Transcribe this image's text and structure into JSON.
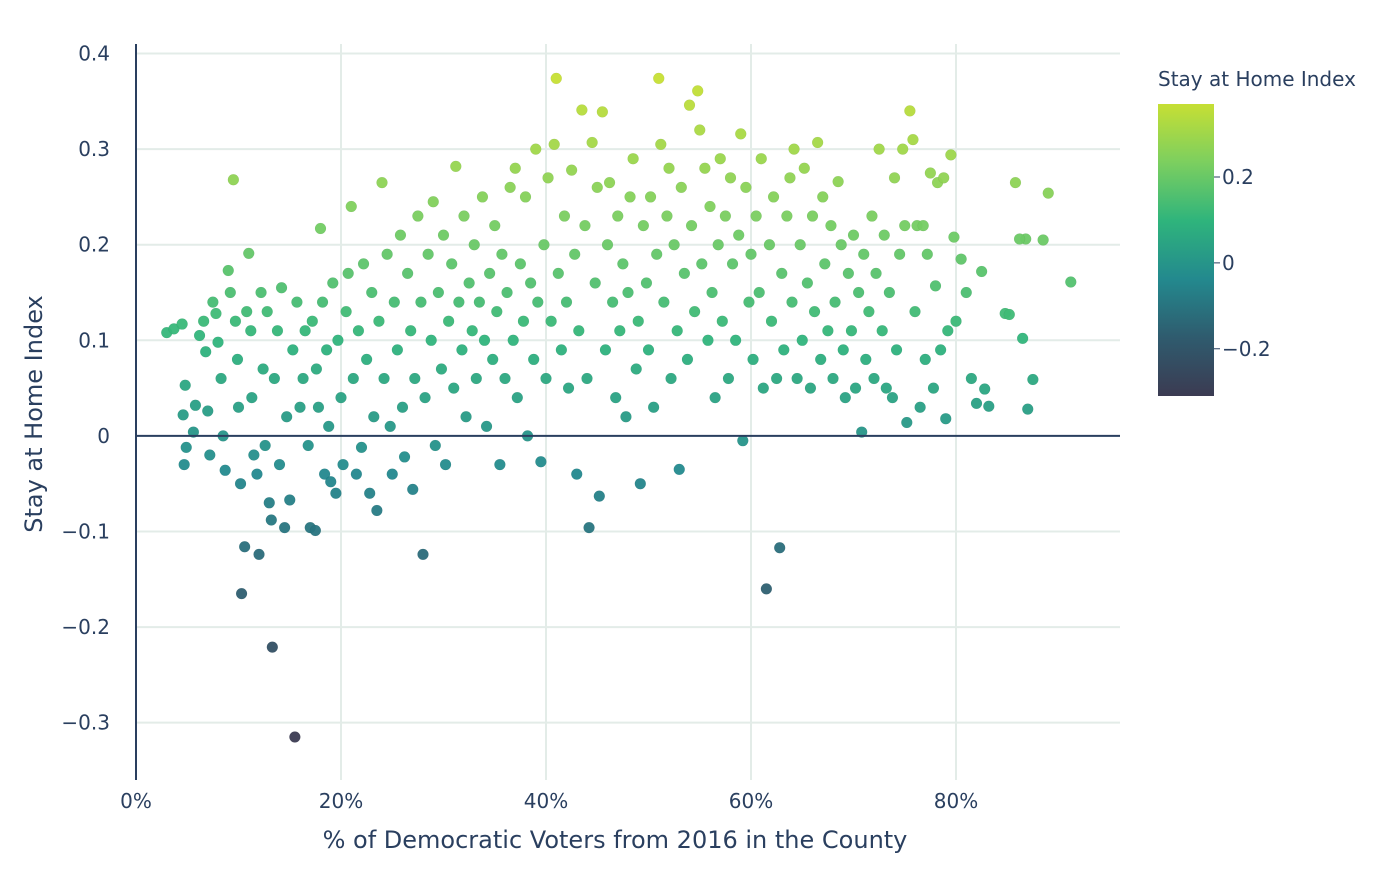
{
  "chart_data": {
    "type": "scatter",
    "xlabel": "% of Democratic Voters from 2016 in the County",
    "ylabel": "Stay at Home Index",
    "xlim": [
      0,
      0.96
    ],
    "ylim": [
      -0.36,
      0.41
    ],
    "x_ticks": [
      {
        "value": 0.0,
        "label": "0%"
      },
      {
        "value": 0.2,
        "label": "20%"
      },
      {
        "value": 0.4,
        "label": "40%"
      },
      {
        "value": 0.6,
        "label": "60%"
      },
      {
        "value": 0.8,
        "label": "80%"
      }
    ],
    "y_ticks": [
      {
        "value": 0.4,
        "label": "0.4"
      },
      {
        "value": 0.3,
        "label": "0.3"
      },
      {
        "value": 0.2,
        "label": "0.2"
      },
      {
        "value": 0.1,
        "label": "0.1"
      },
      {
        "value": 0.0,
        "label": "0"
      },
      {
        "value": -0.1,
        "label": "−0.1"
      },
      {
        "value": -0.2,
        "label": "−0.2"
      },
      {
        "value": -0.3,
        "label": "−0.3"
      }
    ],
    "grid": true,
    "zero_line": true,
    "colorscale": "viridis",
    "colorbar": {
      "title": "Stay at Home Index",
      "range": [
        -0.31,
        0.37
      ],
      "ticks": [
        {
          "value": 0.2,
          "label": "0.2"
        },
        {
          "value": 0.0,
          "label": "0"
        },
        {
          "value": -0.2,
          "label": "−0.2"
        }
      ],
      "colors": [
        "#3b3b52",
        "#2f5b6e",
        "#23898e",
        "#2fb47c",
        "#7ccf5f",
        "#c6df34"
      ]
    },
    "points": [
      [
        0.03,
        0.108
      ],
      [
        0.037,
        0.112
      ],
      [
        0.045,
        0.117
      ],
      [
        0.048,
        0.053
      ],
      [
        0.046,
        0.022
      ],
      [
        0.049,
        -0.012
      ],
      [
        0.047,
        -0.03
      ],
      [
        0.056,
        0.004
      ],
      [
        0.058,
        0.032
      ],
      [
        0.062,
        0.105
      ],
      [
        0.066,
        0.12
      ],
      [
        0.068,
        0.088
      ],
      [
        0.07,
        0.026
      ],
      [
        0.072,
        -0.02
      ],
      [
        0.075,
        0.14
      ],
      [
        0.078,
        0.128
      ],
      [
        0.08,
        0.098
      ],
      [
        0.083,
        0.06
      ],
      [
        0.085,
        0.0
      ],
      [
        0.087,
        -0.036
      ],
      [
        0.09,
        0.173
      ],
      [
        0.092,
        0.15
      ],
      [
        0.095,
        0.268
      ],
      [
        0.097,
        0.12
      ],
      [
        0.099,
        0.08
      ],
      [
        0.1,
        0.03
      ],
      [
        0.102,
        -0.05
      ],
      [
        0.103,
        -0.165
      ],
      [
        0.106,
        -0.116
      ],
      [
        0.108,
        0.13
      ],
      [
        0.11,
        0.191
      ],
      [
        0.112,
        0.11
      ],
      [
        0.113,
        0.04
      ],
      [
        0.115,
        -0.02
      ],
      [
        0.118,
        -0.04
      ],
      [
        0.12,
        -0.124
      ],
      [
        0.122,
        0.15
      ],
      [
        0.124,
        0.07
      ],
      [
        0.126,
        -0.01
      ],
      [
        0.128,
        0.13
      ],
      [
        0.13,
        -0.07
      ],
      [
        0.132,
        -0.088
      ],
      [
        0.133,
        -0.221
      ],
      [
        0.135,
        0.06
      ],
      [
        0.138,
        0.11
      ],
      [
        0.14,
        -0.03
      ],
      [
        0.142,
        0.155
      ],
      [
        0.145,
        -0.096
      ],
      [
        0.147,
        0.02
      ],
      [
        0.15,
        -0.067
      ],
      [
        0.153,
        0.09
      ],
      [
        0.155,
        -0.315
      ],
      [
        0.157,
        0.14
      ],
      [
        0.16,
        0.03
      ],
      [
        0.163,
        0.06
      ],
      [
        0.165,
        0.11
      ],
      [
        0.168,
        -0.01
      ],
      [
        0.17,
        -0.096
      ],
      [
        0.172,
        0.12
      ],
      [
        0.175,
        -0.099
      ],
      [
        0.176,
        0.07
      ],
      [
        0.178,
        0.03
      ],
      [
        0.18,
        0.217
      ],
      [
        0.182,
        0.14
      ],
      [
        0.184,
        -0.04
      ],
      [
        0.186,
        0.09
      ],
      [
        0.188,
        0.01
      ],
      [
        0.19,
        -0.048
      ],
      [
        0.192,
        0.16
      ],
      [
        0.195,
        -0.06
      ],
      [
        0.197,
        0.1
      ],
      [
        0.2,
        0.04
      ],
      [
        0.202,
        -0.03
      ],
      [
        0.205,
        0.13
      ],
      [
        0.207,
        0.17
      ],
      [
        0.21,
        0.24
      ],
      [
        0.212,
        0.06
      ],
      [
        0.215,
        -0.04
      ],
      [
        0.217,
        0.11
      ],
      [
        0.22,
        -0.012
      ],
      [
        0.222,
        0.18
      ],
      [
        0.225,
        0.08
      ],
      [
        0.228,
        -0.06
      ],
      [
        0.23,
        0.15
      ],
      [
        0.232,
        0.02
      ],
      [
        0.235,
        -0.078
      ],
      [
        0.237,
        0.12
      ],
      [
        0.24,
        0.265
      ],
      [
        0.242,
        0.06
      ],
      [
        0.245,
        0.19
      ],
      [
        0.248,
        0.01
      ],
      [
        0.25,
        -0.04
      ],
      [
        0.252,
        0.14
      ],
      [
        0.255,
        0.09
      ],
      [
        0.258,
        0.21
      ],
      [
        0.26,
        0.03
      ],
      [
        0.262,
        -0.022
      ],
      [
        0.265,
        0.17
      ],
      [
        0.268,
        0.11
      ],
      [
        0.27,
        -0.056
      ],
      [
        0.272,
        0.06
      ],
      [
        0.275,
        0.23
      ],
      [
        0.278,
        0.14
      ],
      [
        0.28,
        -0.124
      ],
      [
        0.282,
        0.04
      ],
      [
        0.285,
        0.19
      ],
      [
        0.288,
        0.1
      ],
      [
        0.29,
        0.245
      ],
      [
        0.292,
        -0.01
      ],
      [
        0.295,
        0.15
      ],
      [
        0.298,
        0.07
      ],
      [
        0.3,
        0.21
      ],
      [
        0.302,
        -0.03
      ],
      [
        0.305,
        0.12
      ],
      [
        0.308,
        0.18
      ],
      [
        0.31,
        0.05
      ],
      [
        0.312,
        0.282
      ],
      [
        0.315,
        0.14
      ],
      [
        0.318,
        0.09
      ],
      [
        0.32,
        0.23
      ],
      [
        0.322,
        0.02
      ],
      [
        0.325,
        0.16
      ],
      [
        0.328,
        0.11
      ],
      [
        0.33,
        0.2
      ],
      [
        0.332,
        0.06
      ],
      [
        0.335,
        0.14
      ],
      [
        0.338,
        0.25
      ],
      [
        0.34,
        0.1
      ],
      [
        0.342,
        0.01
      ],
      [
        0.345,
        0.17
      ],
      [
        0.348,
        0.08
      ],
      [
        0.35,
        0.22
      ],
      [
        0.352,
        0.13
      ],
      [
        0.355,
        -0.03
      ],
      [
        0.357,
        0.19
      ],
      [
        0.36,
        0.06
      ],
      [
        0.362,
        0.15
      ],
      [
        0.365,
        0.26
      ],
      [
        0.368,
        0.1
      ],
      [
        0.37,
        0.28
      ],
      [
        0.372,
        0.04
      ],
      [
        0.375,
        0.18
      ],
      [
        0.378,
        0.12
      ],
      [
        0.38,
        0.25
      ],
      [
        0.382,
        0.0
      ],
      [
        0.385,
        0.16
      ],
      [
        0.388,
        0.08
      ],
      [
        0.39,
        0.3
      ],
      [
        0.392,
        0.14
      ],
      [
        0.395,
        -0.027
      ],
      [
        0.398,
        0.2
      ],
      [
        0.4,
        0.06
      ],
      [
        0.402,
        0.27
      ],
      [
        0.405,
        0.12
      ],
      [
        0.408,
        0.305
      ],
      [
        0.41,
        0.374
      ],
      [
        0.412,
        0.17
      ],
      [
        0.415,
        0.09
      ],
      [
        0.418,
        0.23
      ],
      [
        0.42,
        0.14
      ],
      [
        0.422,
        0.05
      ],
      [
        0.425,
        0.278
      ],
      [
        0.428,
        0.19
      ],
      [
        0.43,
        -0.04
      ],
      [
        0.432,
        0.11
      ],
      [
        0.435,
        0.341
      ],
      [
        0.438,
        0.22
      ],
      [
        0.44,
        0.06
      ],
      [
        0.442,
        -0.096
      ],
      [
        0.445,
        0.307
      ],
      [
        0.448,
        0.16
      ],
      [
        0.45,
        0.26
      ],
      [
        0.452,
        -0.063
      ],
      [
        0.455,
        0.339
      ],
      [
        0.458,
        0.09
      ],
      [
        0.46,
        0.2
      ],
      [
        0.462,
        0.265
      ],
      [
        0.465,
        0.14
      ],
      [
        0.468,
        0.04
      ],
      [
        0.47,
        0.23
      ],
      [
        0.472,
        0.11
      ],
      [
        0.475,
        0.18
      ],
      [
        0.478,
        0.02
      ],
      [
        0.48,
        0.15
      ],
      [
        0.482,
        0.25
      ],
      [
        0.485,
        0.29
      ],
      [
        0.488,
        0.07
      ],
      [
        0.49,
        0.12
      ],
      [
        0.492,
        -0.05
      ],
      [
        0.495,
        0.22
      ],
      [
        0.498,
        0.16
      ],
      [
        0.5,
        0.09
      ],
      [
        0.502,
        0.25
      ],
      [
        0.505,
        0.03
      ],
      [
        0.508,
        0.19
      ],
      [
        0.51,
        0.374
      ],
      [
        0.512,
        0.305
      ],
      [
        0.515,
        0.14
      ],
      [
        0.518,
        0.23
      ],
      [
        0.52,
        0.28
      ],
      [
        0.522,
        0.06
      ],
      [
        0.525,
        0.2
      ],
      [
        0.528,
        0.11
      ],
      [
        0.53,
        -0.035
      ],
      [
        0.532,
        0.26
      ],
      [
        0.535,
        0.17
      ],
      [
        0.538,
        0.08
      ],
      [
        0.54,
        0.346
      ],
      [
        0.542,
        0.22
      ],
      [
        0.545,
        0.13
      ],
      [
        0.548,
        0.361
      ],
      [
        0.55,
        0.32
      ],
      [
        0.552,
        0.18
      ],
      [
        0.555,
        0.28
      ],
      [
        0.558,
        0.1
      ],
      [
        0.56,
        0.24
      ],
      [
        0.562,
        0.15
      ],
      [
        0.565,
        0.04
      ],
      [
        0.568,
        0.2
      ],
      [
        0.57,
        0.29
      ],
      [
        0.572,
        0.12
      ],
      [
        0.575,
        0.23
      ],
      [
        0.578,
        0.06
      ],
      [
        0.58,
        0.27
      ],
      [
        0.582,
        0.18
      ],
      [
        0.585,
        0.1
      ],
      [
        0.588,
        0.21
      ],
      [
        0.59,
        0.316
      ],
      [
        0.592,
        -0.005
      ],
      [
        0.595,
        0.26
      ],
      [
        0.598,
        0.14
      ],
      [
        0.6,
        0.19
      ],
      [
        0.602,
        0.08
      ],
      [
        0.605,
        0.23
      ],
      [
        0.608,
        0.15
      ],
      [
        0.61,
        0.29
      ],
      [
        0.612,
        0.05
      ],
      [
        0.615,
        -0.16
      ],
      [
        0.618,
        0.2
      ],
      [
        0.62,
        0.12
      ],
      [
        0.622,
        0.25
      ],
      [
        0.625,
        0.06
      ],
      [
        0.628,
        -0.117
      ],
      [
        0.63,
        0.17
      ],
      [
        0.632,
        0.09
      ],
      [
        0.635,
        0.23
      ],
      [
        0.638,
        0.27
      ],
      [
        0.64,
        0.14
      ],
      [
        0.642,
        0.3
      ],
      [
        0.645,
        0.06
      ],
      [
        0.648,
        0.2
      ],
      [
        0.65,
        0.1
      ],
      [
        0.652,
        0.28
      ],
      [
        0.655,
        0.16
      ],
      [
        0.658,
        0.05
      ],
      [
        0.66,
        0.23
      ],
      [
        0.662,
        0.13
      ],
      [
        0.665,
        0.307
      ],
      [
        0.668,
        0.08
      ],
      [
        0.67,
        0.25
      ],
      [
        0.672,
        0.18
      ],
      [
        0.675,
        0.11
      ],
      [
        0.678,
        0.22
      ],
      [
        0.68,
        0.06
      ],
      [
        0.682,
        0.14
      ],
      [
        0.685,
        0.266
      ],
      [
        0.688,
        0.2
      ],
      [
        0.69,
        0.09
      ],
      [
        0.692,
        0.04
      ],
      [
        0.695,
        0.17
      ],
      [
        0.698,
        0.11
      ],
      [
        0.7,
        0.21
      ],
      [
        0.702,
        0.05
      ],
      [
        0.705,
        0.15
      ],
      [
        0.708,
        0.004
      ],
      [
        0.71,
        0.19
      ],
      [
        0.712,
        0.08
      ],
      [
        0.715,
        0.13
      ],
      [
        0.718,
        0.23
      ],
      [
        0.72,
        0.06
      ],
      [
        0.722,
        0.17
      ],
      [
        0.725,
        0.3
      ],
      [
        0.728,
        0.11
      ],
      [
        0.73,
        0.21
      ],
      [
        0.732,
        0.05
      ],
      [
        0.735,
        0.15
      ],
      [
        0.738,
        0.04
      ],
      [
        0.74,
        0.27
      ],
      [
        0.742,
        0.09
      ],
      [
        0.745,
        0.19
      ],
      [
        0.748,
        0.3
      ],
      [
        0.75,
        0.22
      ],
      [
        0.752,
        0.014
      ],
      [
        0.755,
        0.34
      ],
      [
        0.758,
        0.31
      ],
      [
        0.76,
        0.13
      ],
      [
        0.762,
        0.22
      ],
      [
        0.765,
        0.03
      ],
      [
        0.768,
        0.22
      ],
      [
        0.77,
        0.08
      ],
      [
        0.772,
        0.19
      ],
      [
        0.775,
        0.275
      ],
      [
        0.778,
        0.05
      ],
      [
        0.78,
        0.157
      ],
      [
        0.782,
        0.265
      ],
      [
        0.785,
        0.09
      ],
      [
        0.788,
        0.27
      ],
      [
        0.79,
        0.018
      ],
      [
        0.792,
        0.11
      ],
      [
        0.795,
        0.294
      ],
      [
        0.798,
        0.208
      ],
      [
        0.8,
        0.12
      ],
      [
        0.805,
        0.185
      ],
      [
        0.81,
        0.15
      ],
      [
        0.815,
        0.06
      ],
      [
        0.82,
        0.034
      ],
      [
        0.825,
        0.172
      ],
      [
        0.828,
        0.049
      ],
      [
        0.832,
        0.031
      ],
      [
        0.848,
        0.128
      ],
      [
        0.852,
        0.127
      ],
      [
        0.858,
        0.265
      ],
      [
        0.865,
        0.102
      ],
      [
        0.868,
        0.206
      ],
      [
        0.87,
        0.028
      ],
      [
        0.875,
        0.059
      ],
      [
        0.885,
        0.205
      ],
      [
        0.89,
        0.254
      ],
      [
        0.912,
        0.161
      ],
      [
        0.862,
        0.206
      ]
    ]
  }
}
